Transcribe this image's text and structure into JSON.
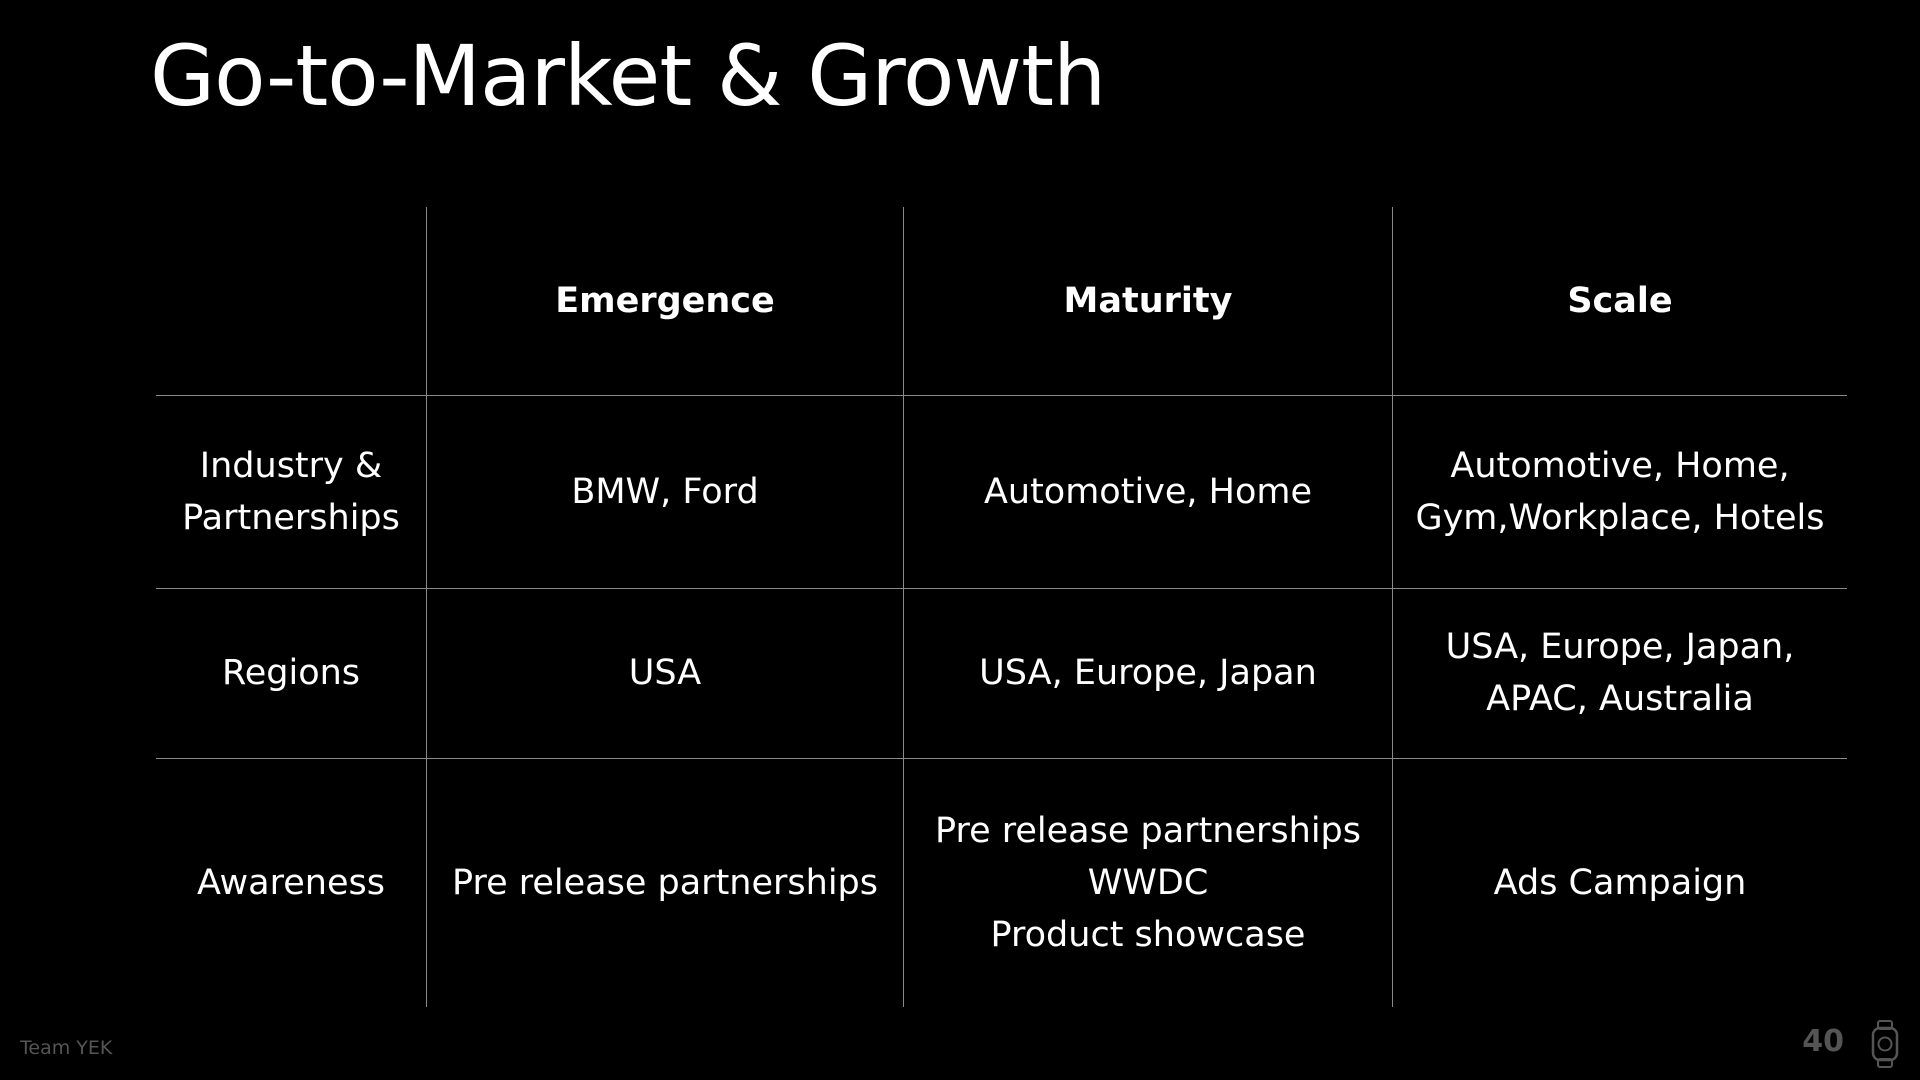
{
  "slide": {
    "title": "Go-to-Market & Growth",
    "footer_team": "Team YEK",
    "page_number": "40",
    "footer_icon": "apple-watch-icon"
  },
  "table": {
    "headers": [
      "",
      "Emergence",
      "Maturity",
      "Scale"
    ],
    "rows": [
      {
        "label": "Industry &\nPartnerships",
        "cells": [
          "BMW, Ford",
          "Automotive, Home",
          "Automotive, Home,\nGym,Workplace, Hotels"
        ]
      },
      {
        "label": "Regions",
        "cells": [
          "USA",
          "USA, Europe, Japan",
          "USA, Europe, Japan,\nAPAC, Australia"
        ]
      },
      {
        "label": "Awareness",
        "cells": [
          "Pre release partnerships",
          "Pre release partnerships\nWWDC\nProduct showcase",
          "Ads Campaign"
        ]
      }
    ]
  },
  "colors": {
    "background": "#000000",
    "text": "#ffffff",
    "grid": "#8a8a8a",
    "footer": "#555555"
  }
}
